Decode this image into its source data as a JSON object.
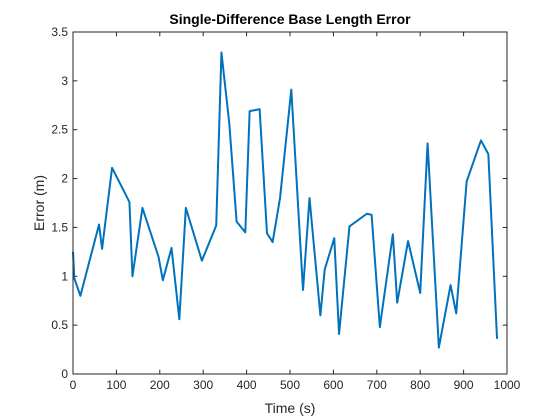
{
  "chart_data": {
    "type": "line",
    "title": "Single-Difference Base Length Error",
    "xlabel": "Time (s)",
    "ylabel": "Error (m)",
    "xlim": [
      0,
      1000
    ],
    "ylim": [
      0,
      3.5
    ],
    "grid": false,
    "x_ticks": [
      0,
      100,
      200,
      300,
      400,
      500,
      600,
      700,
      800,
      900,
      1000
    ],
    "y_ticks": [
      0,
      0.5,
      1,
      1.5,
      2,
      2.5,
      3,
      3.5
    ],
    "x_tick_labels": [
      "0",
      "100",
      "200",
      "300",
      "400",
      "500",
      "600",
      "700",
      "800",
      "900",
      "1000"
    ],
    "y_tick_labels": [
      "0",
      "0.5",
      "1",
      "1.5",
      "2",
      "2.5",
      "3",
      "3.5"
    ],
    "series": [
      {
        "color": "#0072BD",
        "x": [
          0,
          3,
          17,
          60,
          67,
          90,
          130,
          137,
          160,
          197,
          207,
          227,
          245,
          260,
          297,
          330,
          342,
          360,
          377,
          397,
          407,
          430,
          447,
          460,
          477,
          503,
          530,
          545,
          570,
          580,
          602,
          613,
          637,
          677,
          688,
          707,
          737,
          747,
          772,
          800,
          817,
          843,
          870,
          883,
          907,
          940,
          957,
          977
        ],
        "y": [
          1.25,
          0.98,
          0.8,
          1.53,
          1.28,
          2.11,
          1.76,
          1.0,
          1.7,
          1.2,
          0.96,
          1.29,
          0.56,
          1.7,
          1.16,
          1.52,
          3.29,
          2.57,
          1.56,
          1.45,
          2.69,
          2.71,
          1.44,
          1.35,
          1.8,
          2.91,
          0.86,
          1.8,
          0.6,
          1.07,
          1.39,
          0.41,
          1.51,
          1.64,
          1.63,
          0.48,
          1.43,
          0.73,
          1.36,
          0.83,
          2.36,
          0.27,
          0.91,
          0.62,
          1.97,
          2.39,
          2.25,
          0.36
        ]
      }
    ]
  }
}
